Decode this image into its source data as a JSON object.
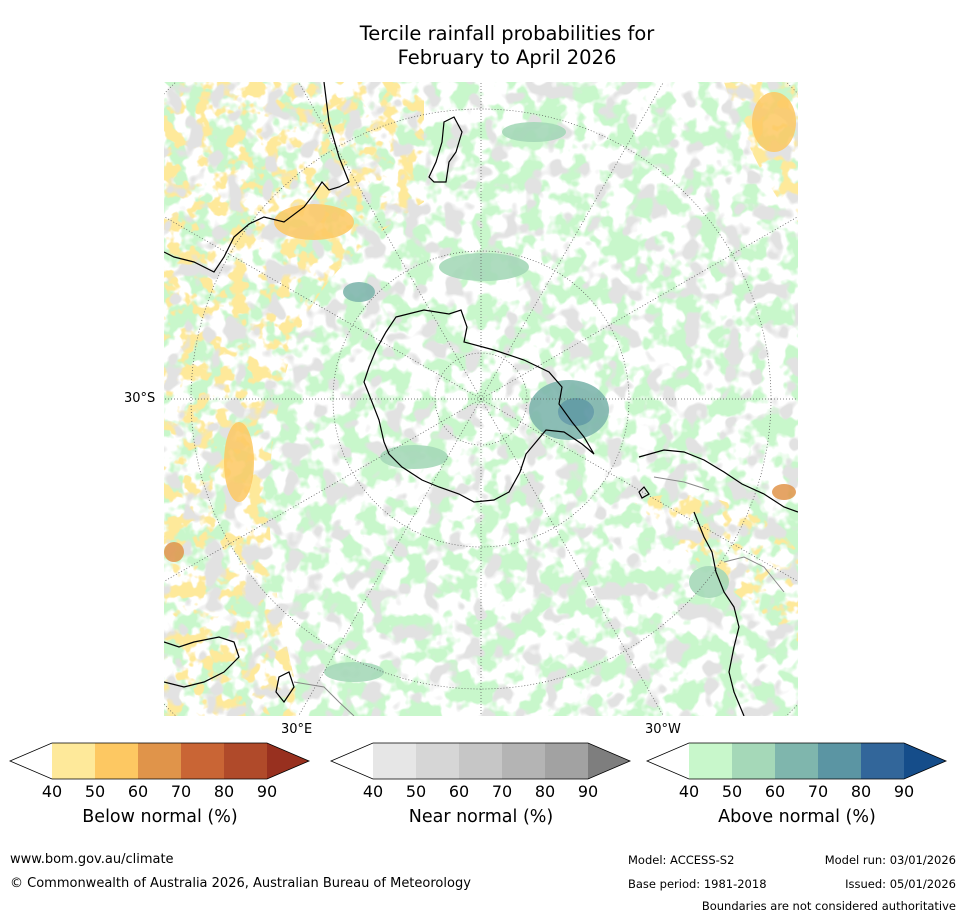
{
  "title_line1": "Tercile rainfall probabilities for",
  "title_line2": "February to April 2026",
  "map": {
    "lat_label": "30°S",
    "lon_labels": [
      "30°E",
      "30°W"
    ],
    "colors": {
      "ocean_bg": "#ffffff",
      "coast": "#000000",
      "border": "#888888",
      "grid": "#555555"
    }
  },
  "colorbars": [
    {
      "label": "Below normal (%)",
      "ticks": [
        "40",
        "50",
        "60",
        "70",
        "80",
        "90"
      ],
      "colors": [
        "#fee99a",
        "#fdc862",
        "#e0944a",
        "#c96535",
        "#b04a2a",
        "#98301f"
      ]
    },
    {
      "label": "Near normal (%)",
      "ticks": [
        "40",
        "50",
        "60",
        "70",
        "80",
        "90"
      ],
      "colors": [
        "#e6e6e6",
        "#d6d6d6",
        "#c6c6c6",
        "#b4b4b4",
        "#a2a2a2",
        "#7e7e7e"
      ]
    },
    {
      "label": "Above normal (%)",
      "ticks": [
        "40",
        "50",
        "60",
        "70",
        "80",
        "90"
      ],
      "colors": [
        "#c8f7cb",
        "#a5d8b8",
        "#7fb6ad",
        "#5b95a3",
        "#32669a",
        "#154d8a"
      ]
    }
  ],
  "footer": {
    "website": "www.bom.gov.au/climate",
    "copyright": "© Commonwealth of Australia 2026, Australian Bureau of Meteorology",
    "model": "Model: ACCESS-S2",
    "base_period": "Base period: 1981-2018",
    "model_run": "Model run: 03/01/2026",
    "issued": "Issued: 05/01/2026",
    "disclaimer": "Boundaries are not considered authoritative"
  }
}
